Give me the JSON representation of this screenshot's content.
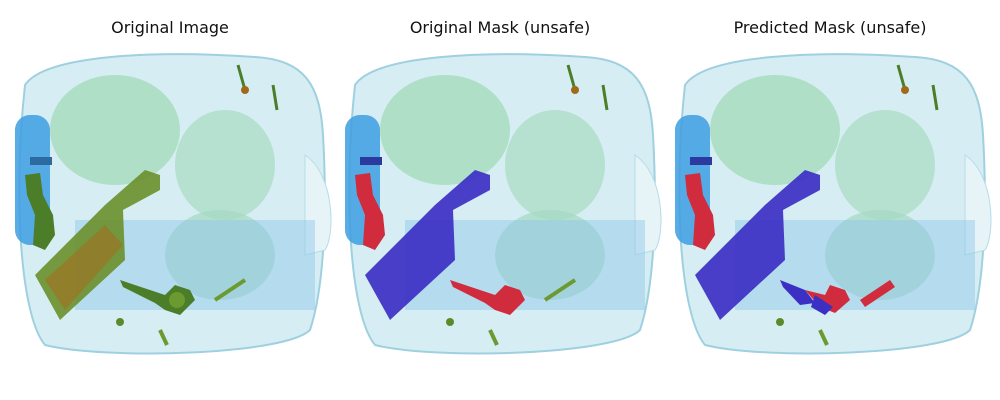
{
  "figure": {
    "panels": [
      {
        "title": "Original Image"
      },
      {
        "title": "Original Mask (unsafe)"
      },
      {
        "title": "Predicted Mask (unsafe)"
      }
    ]
  },
  "colors": {
    "bag_light": "#bfe3ec",
    "bag_blue": "#6bb6e0",
    "bag_green": "#8fd3a7",
    "organic_green": "#6b9a2a",
    "mask_blue": "#3c2fc4",
    "mask_red": "#d12b3e"
  }
}
